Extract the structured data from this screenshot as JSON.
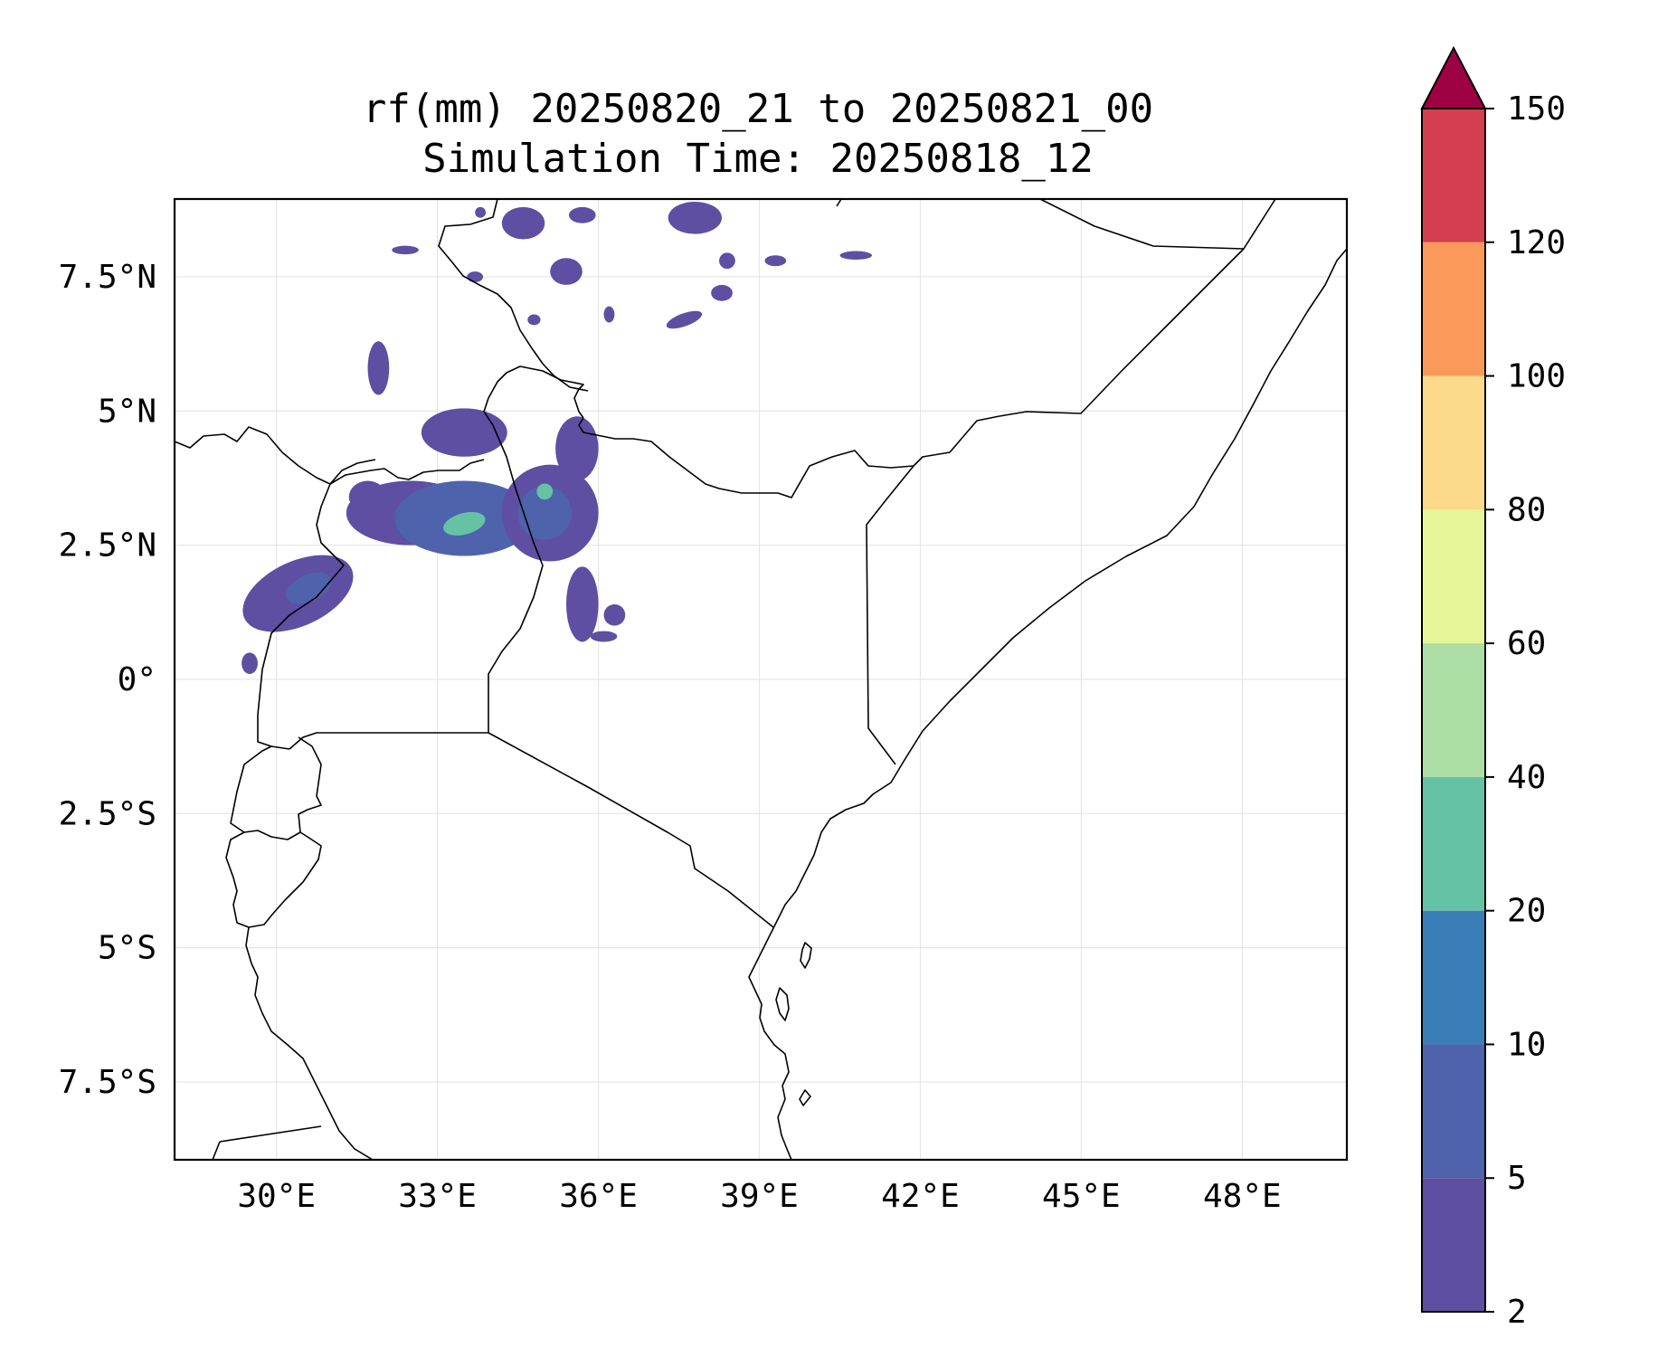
{
  "title": {
    "line1": "rf(mm) 20250820_21 to 20250821_00",
    "line2": "Simulation Time: 20250818_12"
  },
  "map": {
    "lon_range": [
      28.1,
      49.95
    ],
    "lat_range": [
      -8.95,
      8.95
    ],
    "x_ticks": [
      {
        "value": 30,
        "label": "30°E"
      },
      {
        "value": 33,
        "label": "33°E"
      },
      {
        "value": 36,
        "label": "36°E"
      },
      {
        "value": 39,
        "label": "39°E"
      },
      {
        "value": 42,
        "label": "42°E"
      },
      {
        "value": 45,
        "label": "45°E"
      },
      {
        "value": 48,
        "label": "48°E"
      }
    ],
    "y_ticks": [
      {
        "value": 7.5,
        "label": "7.5°N"
      },
      {
        "value": 5,
        "label": "5°N"
      },
      {
        "value": 2.5,
        "label": "2.5°N"
      },
      {
        "value": 0,
        "label": "0°"
      },
      {
        "value": -2.5,
        "label": "2.5°S"
      },
      {
        "value": -5,
        "label": "5°S"
      },
      {
        "value": -7.5,
        "label": "7.5°S"
      }
    ],
    "grid": true
  },
  "colorbar": {
    "levels": [
      {
        "label": "2",
        "color": "#5E4FA2"
      },
      {
        "label": "5",
        "color": "#4F62AC"
      },
      {
        "label": "10",
        "color": "#3A7EB8"
      },
      {
        "label": "20",
        "color": "#66C2A5"
      },
      {
        "label": "40",
        "color": "#ABDDA4"
      },
      {
        "label": "60",
        "color": "#E6F598"
      },
      {
        "label": "80",
        "color": "#FDD98B"
      },
      {
        "label": "100",
        "color": "#F99A5A"
      },
      {
        "label": "120",
        "color": "#D53E4F"
      },
      {
        "label": "150",
        "color": "#9E0142"
      }
    ],
    "extend": "max"
  },
  "rain_patches": [
    {
      "lon": 30.4,
      "lat": 1.6,
      "rx": 1.1,
      "ry": 0.6,
      "rot": -25,
      "level": 0
    },
    {
      "lon": 30.6,
      "lat": 1.7,
      "rx": 0.45,
      "ry": 0.25,
      "rot": -25,
      "level": 1
    },
    {
      "lon": 29.5,
      "lat": 0.3,
      "rx": 0.15,
      "ry": 0.2,
      "rot": 0,
      "level": 0
    },
    {
      "lon": 32.5,
      "lat": 3.1,
      "rx": 1.2,
      "ry": 0.6,
      "rot": 0,
      "level": 0
    },
    {
      "lon": 33.5,
      "lat": 3.0,
      "rx": 1.3,
      "ry": 0.7,
      "rot": 0,
      "level": 1
    },
    {
      "lon": 33.5,
      "lat": 2.9,
      "rx": 0.4,
      "ry": 0.2,
      "rot": -15,
      "level": 3
    },
    {
      "lon": 33.5,
      "lat": 4.6,
      "rx": 0.8,
      "ry": 0.45,
      "rot": 0,
      "level": 0
    },
    {
      "lon": 31.7,
      "lat": 3.4,
      "rx": 0.35,
      "ry": 0.3,
      "rot": 0,
      "level": 0
    },
    {
      "lon": 31.9,
      "lat": 5.8,
      "rx": 0.2,
      "ry": 0.5,
      "rot": 0,
      "level": 0
    },
    {
      "lon": 35.1,
      "lat": 3.1,
      "rx": 0.9,
      "ry": 0.9,
      "rot": 0,
      "level": 0
    },
    {
      "lon": 35.0,
      "lat": 3.1,
      "rx": 0.5,
      "ry": 0.5,
      "rot": 0,
      "level": 1
    },
    {
      "lon": 35.0,
      "lat": 3.5,
      "rx": 0.15,
      "ry": 0.15,
      "rot": 0,
      "level": 3
    },
    {
      "lon": 35.6,
      "lat": 4.3,
      "rx": 0.4,
      "ry": 0.6,
      "rot": 0,
      "level": 0
    },
    {
      "lon": 35.7,
      "lat": 1.4,
      "rx": 0.3,
      "ry": 0.7,
      "rot": 0,
      "level": 0
    },
    {
      "lon": 34.6,
      "lat": 8.5,
      "rx": 0.4,
      "ry": 0.3,
      "rot": 0,
      "level": 0
    },
    {
      "lon": 37.8,
      "lat": 8.6,
      "rx": 0.5,
      "ry": 0.3,
      "rot": 0,
      "level": 0
    },
    {
      "lon": 35.7,
      "lat": 8.65,
      "rx": 0.25,
      "ry": 0.15,
      "rot": 0,
      "level": 0
    },
    {
      "lon": 33.7,
      "lat": 7.5,
      "rx": 0.15,
      "ry": 0.1,
      "rot": 0,
      "level": 0
    },
    {
      "lon": 35.4,
      "lat": 7.6,
      "rx": 0.3,
      "ry": 0.25,
      "rot": 0,
      "level": 0
    },
    {
      "lon": 37.6,
      "lat": 6.7,
      "rx": 0.35,
      "ry": 0.12,
      "rot": -20,
      "level": 0
    },
    {
      "lon": 38.3,
      "lat": 7.2,
      "rx": 0.2,
      "ry": 0.15,
      "rot": 0,
      "level": 0
    },
    {
      "lon": 39.3,
      "lat": 7.8,
      "rx": 0.2,
      "ry": 0.1,
      "rot": 0,
      "level": 0
    },
    {
      "lon": 40.8,
      "lat": 7.9,
      "rx": 0.3,
      "ry": 0.08,
      "rot": 0,
      "level": 0
    },
    {
      "lon": 38.4,
      "lat": 7.8,
      "rx": 0.15,
      "ry": 0.15,
      "rot": 0,
      "level": 0
    },
    {
      "lon": 36.2,
      "lat": 6.8,
      "rx": 0.1,
      "ry": 0.15,
      "rot": 0,
      "level": 0
    },
    {
      "lon": 32.4,
      "lat": 8.0,
      "rx": 0.25,
      "ry": 0.08,
      "rot": 0,
      "level": 0
    },
    {
      "lon": 33.8,
      "lat": 8.7,
      "rx": 0.1,
      "ry": 0.1,
      "rot": 0,
      "level": 0
    },
    {
      "lon": 36.3,
      "lat": 1.2,
      "rx": 0.2,
      "ry": 0.2,
      "rot": 0,
      "level": 0
    },
    {
      "lon": 36.1,
      "lat": 0.8,
      "rx": 0.25,
      "ry": 0.1,
      "rot": 0,
      "level": 0
    },
    {
      "lon": 34.8,
      "lat": 6.7,
      "rx": 0.12,
      "ry": 0.1,
      "rot": 0,
      "level": 0
    }
  ]
}
